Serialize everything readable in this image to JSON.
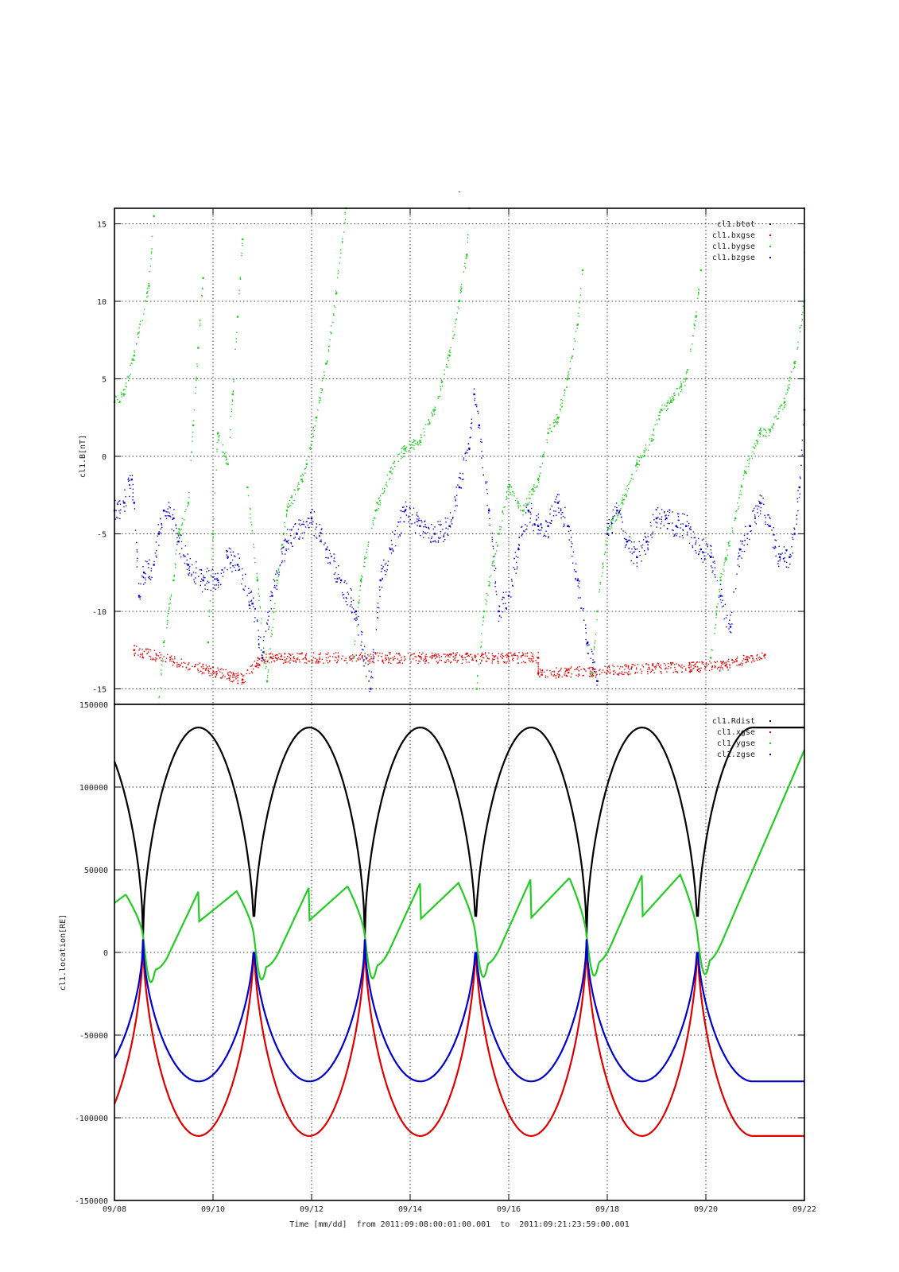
{
  "page_title": "-",
  "chart_data": [
    {
      "type": "scatter",
      "title": "-",
      "ylabel": "cl1.B[nT]",
      "ylim": [
        -16,
        16
      ],
      "yticks": [
        -15,
        -10,
        -5,
        0,
        5,
        10,
        15
      ],
      "grid": true,
      "legend_position": "top-right",
      "series": [
        {
          "name": "cl1.btot",
          "color": "#000000",
          "points": []
        },
        {
          "name": "cl1.bxgse",
          "color": "#dd0000",
          "points": [
            [
              0.4,
              -12.5
            ],
            [
              2.6,
              -14.4
            ],
            [
              3.0,
              -13.0
            ],
            [
              8.6,
              -13.0
            ],
            [
              8.6,
              -14.0
            ],
            [
              12.4,
              -13.5
            ],
            [
              13.2,
              -12.8
            ]
          ]
        },
        {
          "name": "cl1.bygse",
          "color": "#22cc22",
          "points": [
            [
              0.0,
              3.5
            ],
            [
              0.2,
              4.0
            ],
            [
              0.4,
              6.5
            ],
            [
              0.7,
              11.0
            ],
            [
              0.8,
              15.5
            ],
            [
              0.9,
              -16.0
            ],
            [
              1.0,
              -12.0
            ],
            [
              1.2,
              -8.0
            ],
            [
              1.3,
              -5.0
            ],
            [
              1.5,
              -3.0
            ],
            [
              1.6,
              2.0
            ],
            [
              1.7,
              7.0
            ],
            [
              1.8,
              11.5
            ],
            [
              1.9,
              -12.0
            ],
            [
              2.0,
              -5.0
            ],
            [
              2.1,
              1.5
            ],
            [
              2.3,
              -0.5
            ],
            [
              2.4,
              4.0
            ],
            [
              2.5,
              9.0
            ],
            [
              2.6,
              14.0
            ],
            [
              2.7,
              -2.0
            ],
            [
              2.9,
              -8.0
            ],
            [
              3.1,
              -14.5
            ],
            [
              3.3,
              -8.0
            ],
            [
              3.5,
              -3.5
            ],
            [
              3.8,
              -1.5
            ],
            [
              3.9,
              -0.5
            ],
            [
              4.1,
              2.5
            ],
            [
              4.3,
              6.0
            ],
            [
              4.5,
              10.5
            ],
            [
              4.7,
              16.0
            ],
            [
              4.85,
              -13.0
            ],
            [
              5.0,
              -8.0
            ],
            [
              5.3,
              -3.5
            ],
            [
              5.6,
              -1.0
            ],
            [
              5.9,
              0.5
            ],
            [
              6.2,
              1.0
            ],
            [
              6.5,
              3.0
            ],
            [
              6.8,
              6.5
            ],
            [
              7.0,
              10.0
            ],
            [
              7.15,
              13.0
            ],
            [
              7.2,
              16.0
            ],
            [
              7.35,
              -15.0
            ],
            [
              7.5,
              -10.0
            ],
            [
              7.8,
              -5.0
            ],
            [
              8.0,
              -2.0
            ],
            [
              8.3,
              -3.5
            ],
            [
              8.6,
              -1.5
            ],
            [
              8.8,
              1.5
            ],
            [
              9.0,
              2.5
            ],
            [
              9.2,
              5.0
            ],
            [
              9.4,
              8.5
            ],
            [
              9.5,
              12.0
            ],
            [
              9.7,
              -14.0
            ],
            [
              9.8,
              -10.0
            ],
            [
              10.0,
              -5.0
            ],
            [
              10.3,
              -3.0
            ],
            [
              10.6,
              -0.5
            ],
            [
              10.9,
              1.0
            ],
            [
              11.1,
              3.0
            ],
            [
              11.3,
              3.5
            ],
            [
              11.5,
              4.5
            ],
            [
              11.6,
              5.0
            ],
            [
              11.8,
              9.0
            ],
            [
              11.9,
              12.0
            ],
            [
              12.1,
              -13.0
            ],
            [
              12.3,
              -8.0
            ],
            [
              12.6,
              -4.0
            ],
            [
              12.8,
              -1.0
            ],
            [
              13.1,
              1.5
            ],
            [
              13.3,
              1.7
            ],
            [
              13.6,
              3.5
            ],
            [
              13.8,
              6.0
            ],
            [
              14.0,
              10.0
            ],
            [
              14.0,
              16.0
            ]
          ]
        },
        {
          "name": "cl1.bzgse",
          "color": "#0000cc",
          "points": [
            [
              0.0,
              -3.5
            ],
            [
              0.2,
              -3.0
            ],
            [
              0.35,
              -1.5
            ],
            [
              0.4,
              -3.0
            ],
            [
              0.5,
              -9.0
            ],
            [
              0.6,
              -7.5
            ],
            [
              0.8,
              -7.0
            ],
            [
              0.9,
              -5.0
            ],
            [
              1.0,
              -3.5
            ],
            [
              1.2,
              -4.0
            ],
            [
              1.3,
              -5.5
            ],
            [
              1.5,
              -7.0
            ],
            [
              1.8,
              -8.0
            ],
            [
              2.1,
              -8.0
            ],
            [
              2.3,
              -6.5
            ],
            [
              2.5,
              -7.0
            ],
            [
              2.8,
              -9.5
            ],
            [
              3.0,
              -13.0
            ],
            [
              3.2,
              -9.0
            ],
            [
              3.5,
              -5.5
            ],
            [
              3.7,
              -5.0
            ],
            [
              4.0,
              -4.0
            ],
            [
              4.3,
              -6.0
            ],
            [
              4.6,
              -8.0
            ],
            [
              4.9,
              -10.0
            ],
            [
              5.2,
              -15.0
            ],
            [
              5.4,
              -8.0
            ],
            [
              5.6,
              -6.0
            ],
            [
              5.9,
              -3.5
            ],
            [
              6.2,
              -4.5
            ],
            [
              6.5,
              -5.0
            ],
            [
              6.8,
              -4.5
            ],
            [
              7.0,
              -2.0
            ],
            [
              7.2,
              0.5
            ],
            [
              7.3,
              4.0
            ],
            [
              7.4,
              2.0
            ],
            [
              7.6,
              -3.5
            ],
            [
              7.8,
              -10.0
            ],
            [
              8.0,
              -9.0
            ],
            [
              8.2,
              -6.0
            ],
            [
              8.4,
              -3.5
            ],
            [
              8.6,
              -4.5
            ],
            [
              8.8,
              -4.5
            ],
            [
              9.0,
              -3.0
            ],
            [
              9.2,
              -4.5
            ],
            [
              9.4,
              -8.0
            ],
            [
              9.6,
              -12.0
            ],
            [
              9.8,
              -14.5
            ],
            [
              10.0,
              -5.0
            ],
            [
              10.2,
              -3.5
            ],
            [
              10.4,
              -5.5
            ],
            [
              10.6,
              -6.5
            ],
            [
              10.8,
              -5.5
            ],
            [
              11.0,
              -4.0
            ],
            [
              11.2,
              -4.0
            ],
            [
              11.4,
              -4.5
            ],
            [
              11.6,
              -4.5
            ],
            [
              11.9,
              -6.0
            ],
            [
              12.1,
              -6.5
            ],
            [
              12.3,
              -9.0
            ],
            [
              12.5,
              -11.0
            ],
            [
              12.7,
              -6.0
            ],
            [
              12.9,
              -4.5
            ],
            [
              13.1,
              -3.0
            ],
            [
              13.3,
              -4.5
            ],
            [
              13.5,
              -6.5
            ],
            [
              13.7,
              -6.5
            ],
            [
              13.8,
              -5.0
            ],
            [
              13.9,
              -2.0
            ],
            [
              14.0,
              3.0
            ]
          ]
        }
      ]
    },
    {
      "type": "line",
      "ylabel": "cl1.location[RE]",
      "xlabel": "Time [mm/dd]  from 2011:09:08:00:01:00.001  to  2011:09:21:23:59:00.001",
      "xlim": [
        0,
        14
      ],
      "ylim": [
        -150000,
        150000
      ],
      "yticks": [
        -150000,
        -100000,
        -50000,
        0,
        50000,
        100000,
        150000
      ],
      "ytick_labels": [
        "-150000",
        "-100000",
        "-50000",
        "0",
        "50000",
        "100000",
        "150000"
      ],
      "x_tick_values": [
        0,
        2,
        4,
        6,
        8,
        10,
        12,
        14
      ],
      "categories": [
        "09/08",
        "09/10",
        "09/12",
        "09/14",
        "09/16",
        "09/18",
        "09/20",
        "09/22"
      ],
      "grid": true,
      "legend_position": "top-right",
      "orbit_period_days": 2.25,
      "perigee_days": [
        0.58,
        2.83,
        5.08,
        7.33,
        9.58,
        11.83
      ],
      "series": [
        {
          "name": "cl1.Rdist",
          "color": "#000000",
          "perigee": 10000,
          "apogee": 136000
        },
        {
          "name": "cl1.xgse",
          "color": "#dd0000",
          "perigee": 8000,
          "apogee": -111000
        },
        {
          "name": "cl1.ygse",
          "color": "#22cc22",
          "perigee": 10000,
          "peak_max": [
            35000,
            37000,
            40000,
            42000,
            45000,
            47000,
            50000
          ],
          "peak_min": [
            -35000,
            -34000,
            -32000,
            -31000,
            -30000,
            -29000,
            -28000
          ]
        },
        {
          "name": "cl1.zgse",
          "color": "#0000cc",
          "perigee": 8000,
          "apogee": -78000
        }
      ]
    }
  ]
}
